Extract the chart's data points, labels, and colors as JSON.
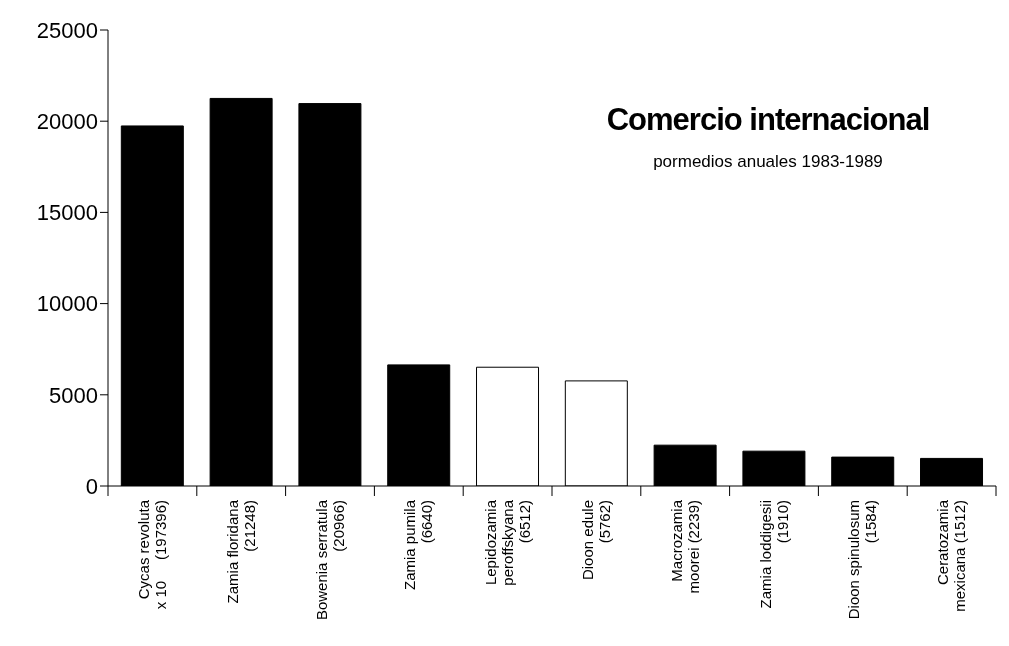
{
  "chart_data": {
    "type": "bar",
    "title": "Comercio internacional",
    "subtitle": "pormedios anuales 1983-1989",
    "categories": [
      "Cycas revoluta\nx 10     (197396)",
      "Zamia floridana\n(21248)",
      "Bowenia serratula\n(20966)",
      "Zamia pumila\n(6640)",
      "Lepidozamia\nperoffskyana\n(6512)",
      "Dioon edule\n(5762)",
      "Macrozamia\nmoorei (2239)",
      "Zamia loddigesii\n(1910)",
      "Dioon spinulosum\n(1584)",
      "Ceratozamia\nmexicana (1512)"
    ],
    "values": [
      19739.6,
      21248,
      20966,
      6640,
      6512,
      5762,
      2239,
      1910,
      1584,
      1512
    ],
    "colors": [
      "#000000",
      "#000000",
      "#000000",
      "#000000",
      "#ffffff",
      "#ffffff",
      "#000000",
      "#000000",
      "#000000",
      "#000000"
    ],
    "ylim": [
      0,
      25000
    ],
    "yticks": [
      0,
      5000,
      10000,
      15000,
      20000,
      25000
    ],
    "grid": false,
    "legend": false
  }
}
